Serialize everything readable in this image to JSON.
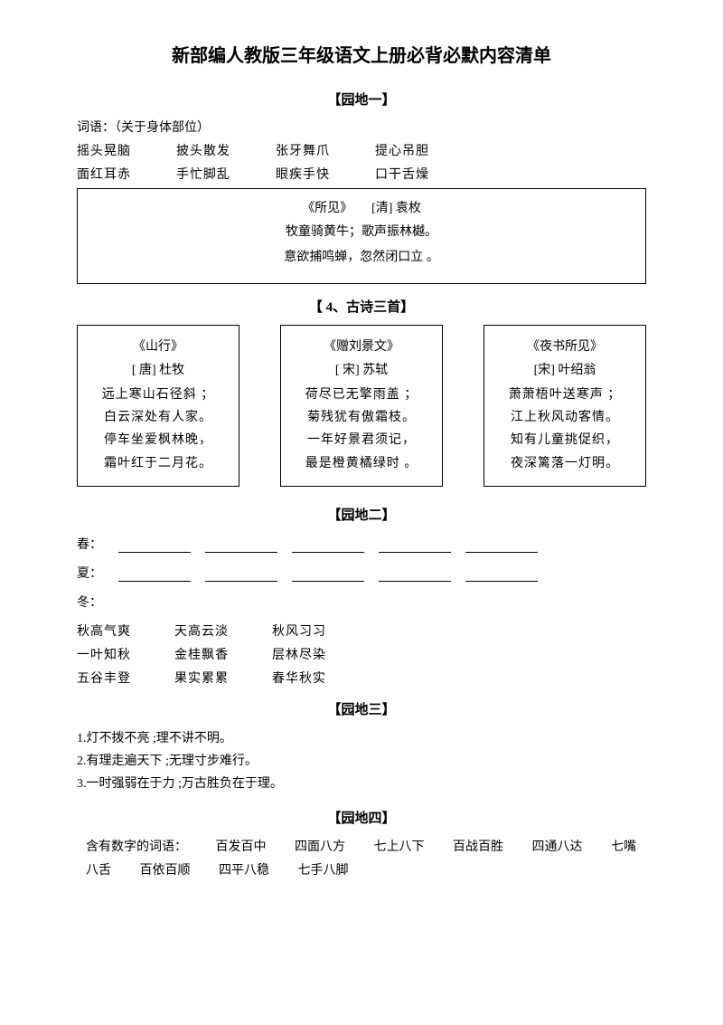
{
  "title": "新部编人教版三年级语文上册必背必默内容清单",
  "s1": {
    "header": "【园地一】",
    "sub": "词语：（关于身体部位）",
    "r1": [
      "摇头晃脑",
      "披头散发",
      "张牙舞爪",
      "提心吊胆"
    ],
    "r2": [
      "面红耳赤",
      "手忙脚乱",
      "眼疾手快",
      "口干舌燥"
    ],
    "poem_head": "《所见》　　[清]  袁枚",
    "poem_l1": "牧童骑黄牛；歌声振林樾。",
    "poem_l2": "意欲捕鸣蝉，忽然闭口立 。"
  },
  "s2": {
    "header": "【 4、古诗三首】",
    "p1": {
      "t": "《山行》",
      "a": "[ 唐]  杜牧",
      "l1": "远上寒山石径斜 ；",
      "l2": "白云深处有人家。",
      "l3": "停车坐爱枫林晚，",
      "l4": "霜叶红于二月花。"
    },
    "p2": {
      "t": "《赠刘景文》",
      "a": "[  宋]  苏轼",
      "l1": "荷尽已无擎雨盖 ；",
      "l2": "菊残犹有傲霜枝。",
      "l3": "一年好景君须记，",
      "l4": "最是橙黄橘绿时 。"
    },
    "p3": {
      "t": "《夜书所见》",
      "a": "[宋]  叶绍翁",
      "l1": "萧萧梧叶送寒声 ；",
      "l2": "江上秋风动客情。",
      "l3": "知有儿童挑促织，",
      "l4": "夜深篱落一灯明。"
    }
  },
  "s3": {
    "header": "【园地二】",
    "spring": "春：",
    "summer": "夏：",
    "winter": "冬：",
    "r1": [
      "秋高气爽",
      "天高云淡",
      "秋风习习"
    ],
    "r2": [
      "一叶知秋",
      "金桂飘香",
      "层林尽染"
    ],
    "r3": [
      "五谷丰登",
      "果实累累",
      "春华秋实"
    ]
  },
  "s4": {
    "header": "【园地三】",
    "l1": "1.灯不拨不亮 ;理不讲不明。",
    "l2": "2.有理走遍天下 ;无理寸步难行。",
    "l3": "3.一时强弱在于力 ;万古胜负在于理。"
  },
  "s5": {
    "header": "【园地四】",
    "intro": "含有数字的词语：",
    "w": [
      "百发百中",
      "四面八方",
      "七上八下",
      "百战百胜",
      "四通八达",
      "七嘴八舌",
      "百依百顺",
      "四平八稳",
      "七手八脚"
    ]
  }
}
